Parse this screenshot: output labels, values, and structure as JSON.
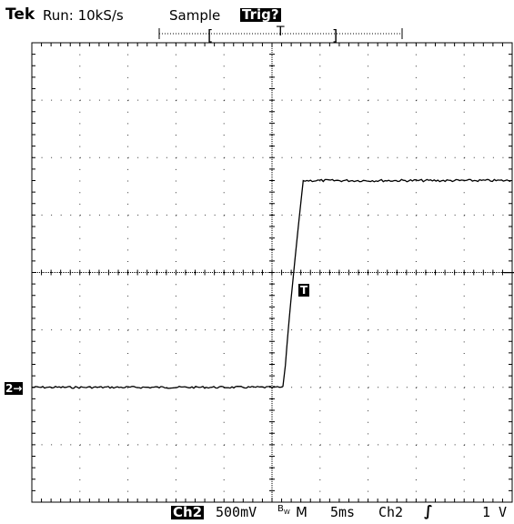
{
  "header": {
    "brand": "Tek",
    "run_status": "Run: 10kS/s",
    "acq_mode": "Sample",
    "trigger_status": "Trig?"
  },
  "record_bar": {
    "bracket_left": "[",
    "trigger_marker": "T",
    "bracket_right": "]"
  },
  "waveform": {
    "channel_marker": "2→",
    "trigger_point_marker": "T",
    "low_level_div": -2,
    "high_level_div": 1.6,
    "trigger_level_div": 0,
    "edge_start_div": 0.25,
    "edge_end_div": 0.65,
    "screen_divisions_x": 10,
    "screen_divisions_y": 8
  },
  "footer": {
    "channel": "Ch2",
    "volts_per_div": "500mV",
    "bw_symbol": "B",
    "bw_sub": "W",
    "timebase_prefix": "M",
    "time_per_div": "5ms",
    "trigger_source": "Ch2",
    "trigger_slope_icon": "rising-edge-icon",
    "trigger_level": "1 V"
  },
  "colors": {
    "background": "#ffffff",
    "trace": "#000000",
    "graticule": "#000000"
  }
}
